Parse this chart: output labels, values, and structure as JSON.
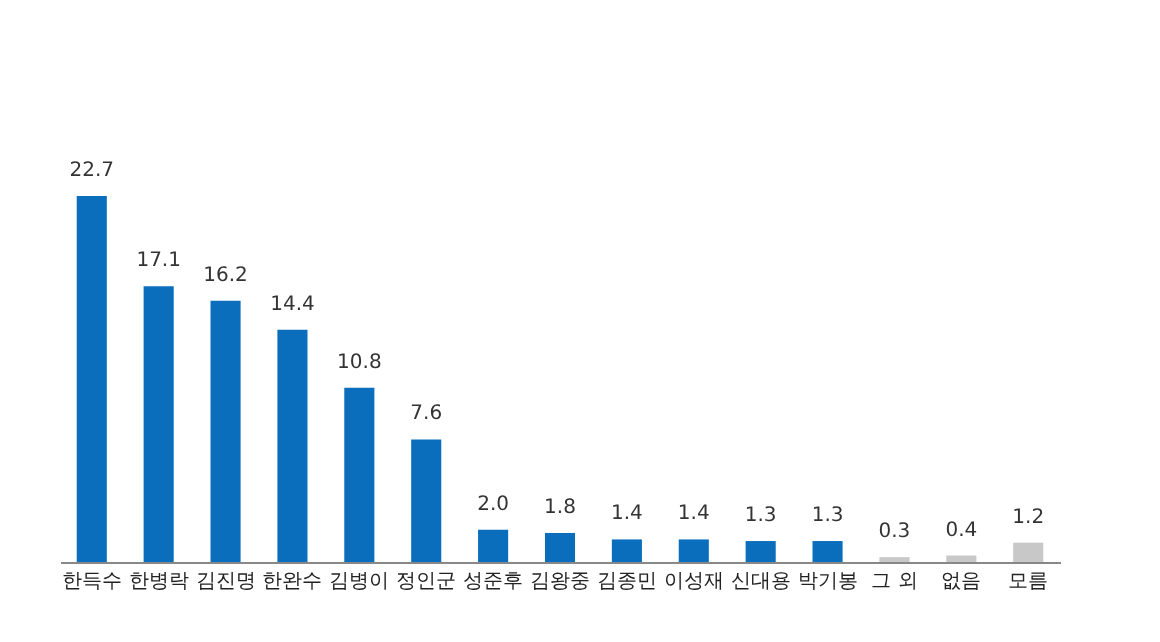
{
  "chart_data": {
    "type": "bar",
    "categories": [
      "한득수",
      "한병락",
      "김진명",
      "한완수",
      "김병이",
      "정인군",
      "성준후",
      "김왕중",
      "김종민",
      "이성재",
      "신대용",
      "박기봉",
      "그 외",
      "없음",
      "모름"
    ],
    "values": [
      22.7,
      17.1,
      16.2,
      14.4,
      10.8,
      7.6,
      2.0,
      1.8,
      1.4,
      1.4,
      1.3,
      1.3,
      0.3,
      0.4,
      1.2
    ],
    "colors": [
      "#0a6ebd",
      "#0a6ebd",
      "#0a6ebd",
      "#0a6ebd",
      "#0a6ebd",
      "#0a6ebd",
      "#0a6ebd",
      "#0a6ebd",
      "#0a6ebd",
      "#0a6ebd",
      "#0a6ebd",
      "#0a6ebd",
      "#c8c8c8",
      "#c8c8c8",
      "#c8c8c8"
    ],
    "value_labels": [
      "22.7",
      "17.1",
      "16.2",
      "14.4",
      "10.8",
      "7.6",
      "2.0",
      "1.8",
      "1.4",
      "1.4",
      "1.3",
      "1.3",
      "0.3",
      "0.4",
      "1.2"
    ]
  }
}
